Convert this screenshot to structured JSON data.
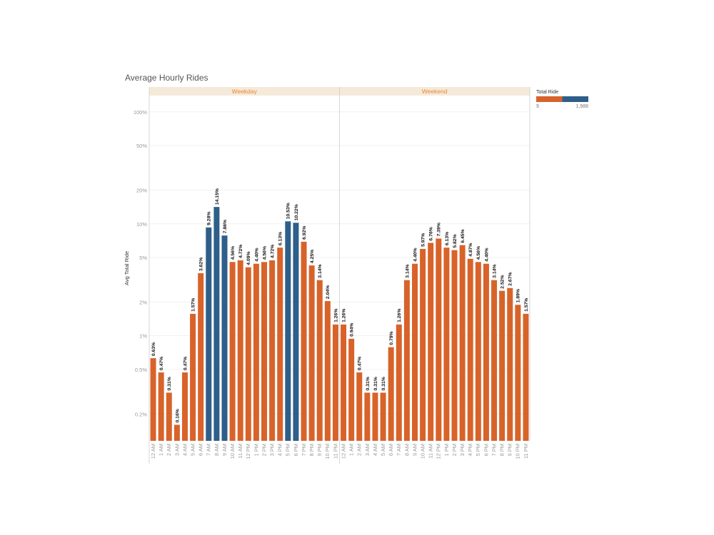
{
  "chart_data": {
    "type": "bar",
    "title": "Average Hourly Rides",
    "ylabel": "Avg Total Ride",
    "y_scale": "log",
    "yticks": [
      {
        "value": 0.2,
        "label": "0.2%"
      },
      {
        "value": 0.5,
        "label": "0.5%"
      },
      {
        "value": 1,
        "label": "1%"
      },
      {
        "value": 2,
        "label": "2%"
      },
      {
        "value": 5,
        "label": "5%"
      },
      {
        "value": 10,
        "label": "10%"
      },
      {
        "value": 20,
        "label": "20%"
      },
      {
        "value": 50,
        "label": "50%"
      },
      {
        "value": 100,
        "label": "100%"
      }
    ],
    "ylim": [
      0.115,
      140
    ],
    "categories": [
      "12 AM",
      "1 AM",
      "2 AM",
      "3 AM",
      "4 AM",
      "5 AM",
      "6 AM",
      "7 AM",
      "8 AM",
      "9 AM",
      "10 AM",
      "11 AM",
      "12 PM",
      "1 PM",
      "2 PM",
      "3 PM",
      "4 PM",
      "5 PM",
      "6 PM",
      "7 PM",
      "8 PM",
      "9 PM",
      "10 PM",
      "11 PM"
    ],
    "panels": [
      {
        "name": "Weekday",
        "values": [
          0.63,
          0.47,
          0.31,
          0.16,
          0.47,
          1.57,
          3.62,
          9.28,
          14.15,
          7.86,
          4.56,
          4.72,
          4.09,
          4.4,
          4.56,
          4.72,
          6.13,
          10.53,
          10.22,
          6.92,
          4.25,
          3.14,
          2.04,
          1.26
        ],
        "labels": [
          "0.63%",
          "0.47%",
          "0.31%",
          "0.16%",
          "0.47%",
          "1.57%",
          "3.62%",
          "9.28%",
          "14.15%",
          "7.86%",
          "4.56%",
          "4.72%",
          "4.09%",
          "4.40%",
          "4.56%",
          "4.72%",
          "6.13%",
          "10.53%",
          "10.22%",
          "6.92%",
          "4.25%",
          "3.14%",
          "2.04%",
          "1.26%"
        ],
        "highlight": [
          false,
          false,
          false,
          false,
          false,
          false,
          false,
          true,
          true,
          true,
          false,
          false,
          false,
          false,
          false,
          false,
          false,
          true,
          true,
          false,
          false,
          false,
          false,
          false
        ]
      },
      {
        "name": "Weekend",
        "values": [
          1.26,
          0.94,
          0.47,
          0.31,
          0.31,
          0.31,
          0.79,
          1.26,
          3.14,
          4.4,
          5.97,
          6.76,
          7.39,
          6.13,
          5.82,
          6.45,
          4.87,
          4.56,
          4.4,
          3.14,
          2.52,
          2.67,
          1.89,
          1.57
        ],
        "labels": [
          "1.26%",
          "0.94%",
          "0.47%",
          "0.31%",
          "0.31%",
          "0.31%",
          "0.79%",
          "1.26%",
          "3.14%",
          "4.40%",
          "5.97%",
          "6.76%",
          "7.39%",
          "6.13%",
          "5.82%",
          "6.45%",
          "4.87%",
          "4.56%",
          "4.40%",
          "3.14%",
          "2.52%",
          "2.67%",
          "1.89%",
          "1.57%"
        ],
        "highlight": [
          false,
          false,
          false,
          false,
          false,
          false,
          false,
          false,
          false,
          false,
          false,
          false,
          false,
          false,
          false,
          false,
          false,
          false,
          false,
          false,
          false,
          false,
          false,
          false
        ]
      }
    ],
    "legend": {
      "title": "Total Ride",
      "min_label": "9",
      "max_label": "1,988",
      "split_fraction": 0.5
    }
  },
  "colors": {
    "orange": "#d8632a",
    "blue": "#2e5f8a",
    "header_bg": "#f5ead9",
    "header_text": "#e8873a",
    "grid": "#f1f1f1",
    "divider": "#cccccc"
  }
}
